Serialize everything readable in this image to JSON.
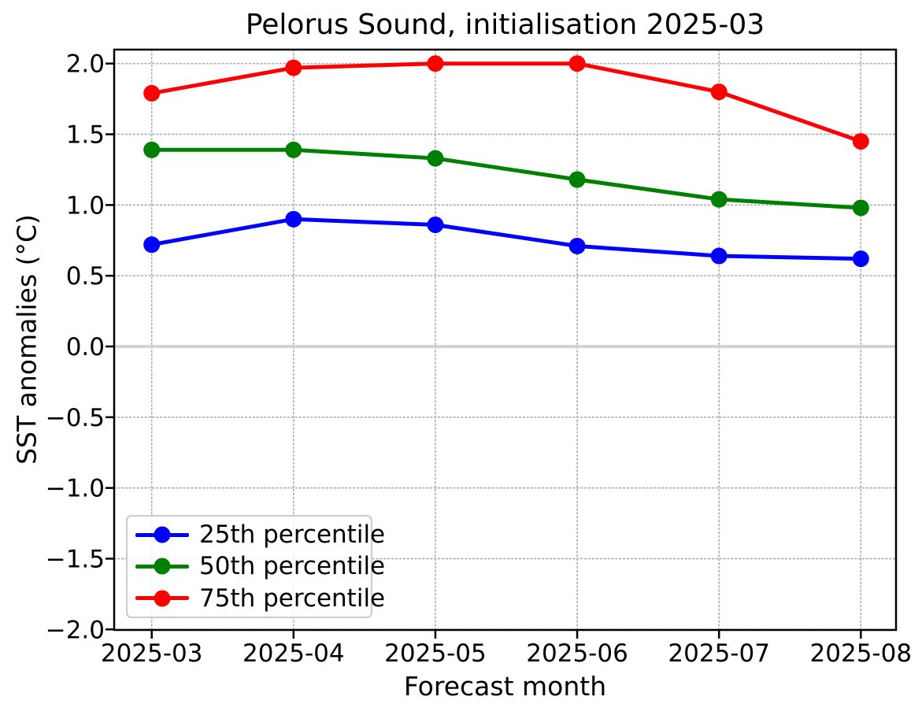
{
  "chart_data": {
    "type": "line",
    "title": "Pelorus Sound, initialisation 2025-03",
    "xlabel": "Forecast month",
    "ylabel": "SST anomalies (°C)",
    "categories": [
      "2025-03",
      "2025-04",
      "2025-05",
      "2025-06",
      "2025-07",
      "2025-08"
    ],
    "series": [
      {
        "name": "25th percentile",
        "color": "#0000ff",
        "values": [
          0.72,
          0.9,
          0.86,
          0.71,
          0.64,
          0.62
        ]
      },
      {
        "name": "50th percentile",
        "color": "#008000",
        "values": [
          1.39,
          1.39,
          1.33,
          1.18,
          1.04,
          0.98
        ]
      },
      {
        "name": "75th percentile",
        "color": "#ff0000",
        "values": [
          1.79,
          1.97,
          2.0,
          2.0,
          1.8,
          1.45
        ]
      }
    ],
    "ylim": [
      -2.0,
      2.0
    ],
    "yticks": [
      2.0,
      1.5,
      1.0,
      0.5,
      0.0,
      -0.5,
      -1.0,
      -1.5,
      -2.0
    ],
    "grid": "dotted",
    "grid_color": "#b0b0b0",
    "zero_line_color": "#d3d3d3",
    "axis_color": "#000000",
    "legend_position": "lower left",
    "legend_labels": [
      "25th percentile",
      "50th percentile",
      "75th percentile"
    ]
  }
}
